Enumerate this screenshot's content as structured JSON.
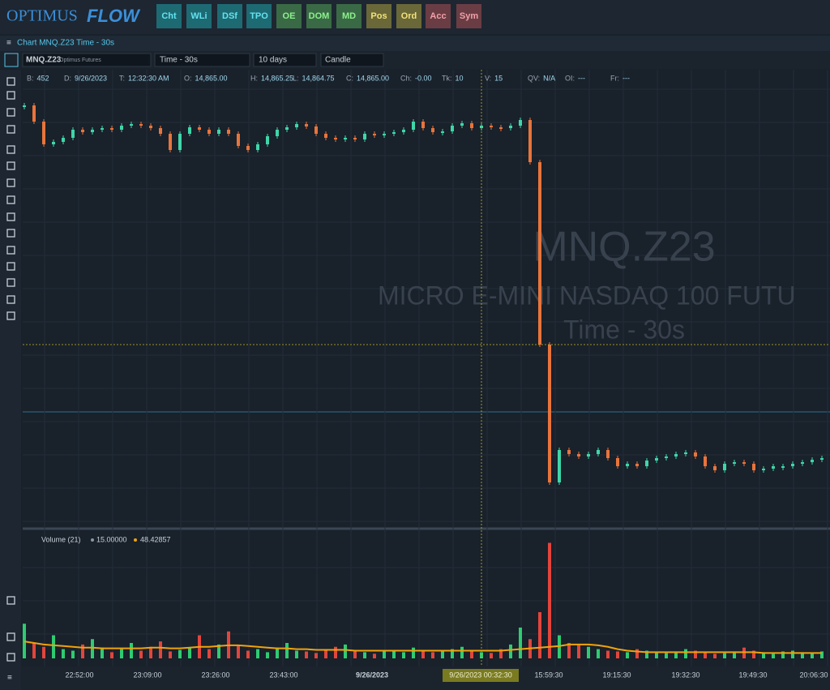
{
  "header": {
    "logo_left": "OPTIMUS",
    "logo_right": "FLOW",
    "buttons": [
      "Cht",
      "WLi",
      "DSf",
      "TPO",
      "OE",
      "DOM",
      "MD",
      "Pos",
      "Ord",
      "Acc",
      "Sym"
    ]
  },
  "window_title": "Chart MNQ.Z23 Time - 30s",
  "toolbar": {
    "symbol": "MNQ.Z23",
    "exchange": "Optimus Futures",
    "interval": "Time - 30s",
    "range": "10 days",
    "style": "Candle"
  },
  "info_bar": [
    {
      "label": "B:",
      "value": "452"
    },
    {
      "label": "D:",
      "value": "9/26/2023"
    },
    {
      "label": "T:",
      "value": "12:32:30 AM"
    },
    {
      "label": "O:",
      "value": "14,865.00"
    },
    {
      "label": "H:",
      "value": "14,865.25"
    },
    {
      "label": "L:",
      "value": "14,864.75"
    },
    {
      "label": "C:",
      "value": "14,865.00"
    },
    {
      "label": "Ch:",
      "value": "-0.00"
    },
    {
      "label": "Tk:",
      "value": "10"
    },
    {
      "label": "V:",
      "value": "15"
    },
    {
      "label": "QV:",
      "value": "N/A"
    },
    {
      "label": "OI:",
      "value": "---"
    },
    {
      "label": "Fr:",
      "value": "---"
    }
  ],
  "chart_data": {
    "type": "candle",
    "watermark": [
      "MNQ.Z23",
      "MICRO E-MINI NASDAQ 100 FUTU",
      "Time - 30s"
    ],
    "x_labels": [
      "22:52:00",
      "23:09:00",
      "23:26:00",
      "23:43:00",
      "9/26/2023",
      "15:59:30",
      "19:15:30",
      "19:32:30",
      "19:49:30",
      "20:06:30"
    ],
    "crosshair_label": "9/26/2023 00:32:30",
    "up_color": "#3fd6a8",
    "down_color": "#e8743b",
    "ylim": [
      0,
      560
    ],
    "values": [
      520,
      500,
      472,
      475,
      480,
      490,
      487,
      490,
      492,
      490,
      495,
      497,
      495,
      492,
      485,
      465,
      485,
      493,
      490,
      485,
      490,
      485,
      470,
      465,
      472,
      482,
      490,
      493,
      497,
      494,
      485,
      480,
      478,
      480,
      478,
      485,
      484,
      485,
      487,
      490,
      500,
      492,
      487,
      488,
      495,
      498,
      492,
      495,
      493,
      492,
      495,
      502,
      450,
      225,
      55,
      95,
      90,
      87,
      90,
      95,
      85,
      75,
      78,
      75,
      82,
      85,
      87,
      90,
      92,
      87,
      75,
      70,
      78,
      80,
      78,
      70,
      72,
      75,
      75,
      78,
      80,
      83,
      85
    ],
    "volume": {
      "title": "Volume (21)",
      "legend": [
        "15.00000",
        "48.42857"
      ],
      "ylim": [
        0,
        160
      ],
      "up_color": "#2ecc71",
      "down_color": "#e2453c",
      "ma_color": "#f0a30a",
      "values": [
        45,
        20,
        15,
        30,
        12,
        10,
        18,
        25,
        14,
        8,
        12,
        20,
        10,
        15,
        22,
        9,
        11,
        14,
        30,
        12,
        18,
        35,
        16,
        10,
        12,
        8,
        14,
        20,
        10,
        9,
        7,
        12,
        15,
        18,
        10,
        8,
        6,
        9,
        11,
        8,
        14,
        10,
        8,
        9,
        12,
        15,
        10,
        8,
        7,
        12,
        18,
        40,
        25,
        60,
        150,
        30,
        20,
        18,
        15,
        12,
        10,
        9,
        8,
        12,
        10,
        8,
        7,
        9,
        12,
        10,
        8,
        6,
        7,
        9,
        14,
        10,
        8,
        6,
        9,
        10,
        8,
        7,
        9
      ],
      "ma": [
        22,
        20,
        18,
        17,
        16,
        15,
        14,
        14,
        13,
        13,
        13,
        13,
        13,
        14,
        14,
        13,
        13,
        14,
        15,
        15,
        16,
        17,
        17,
        16,
        15,
        14,
        13,
        13,
        12,
        12,
        11,
        11,
        11,
        11,
        10,
        10,
        10,
        10,
        10,
        10,
        10,
        10,
        10,
        10,
        10,
        10,
        10,
        10,
        10,
        10,
        11,
        12,
        13,
        14,
        15,
        16,
        18,
        18,
        18,
        17,
        15,
        12,
        10,
        9,
        8,
        8,
        8,
        8,
        8,
        8,
        8,
        8,
        8,
        8,
        8,
        8,
        7,
        7,
        7,
        7,
        7,
        7,
        7
      ]
    }
  }
}
